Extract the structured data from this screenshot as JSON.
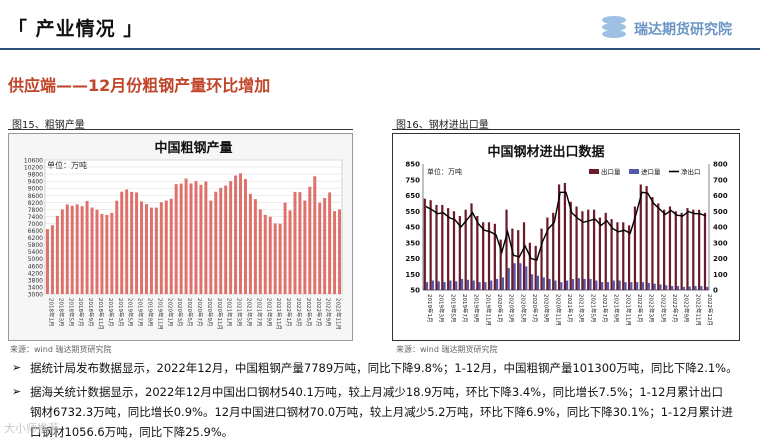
{
  "header": {
    "title": "「 产业情况 」",
    "logo_text": "瑞达期货研究院"
  },
  "section_title": "供应端——12月份粗钢产量环比增加",
  "figures": [
    {
      "caption": "图15、粗钢产量",
      "source": "来源：wind    瑞达期货研究院"
    },
    {
      "caption": "图16、钢材进出口量",
      "source": "来源：wind    瑞达期货研究院"
    }
  ],
  "bullets": [
    {
      "lines": [
        "据统计局发布数据显示，2022年12月，中国粗钢产量7789万吨，同比下降9.8%；1-12月，中国粗钢产量101300万吨，同比下降2.1%。"
      ]
    },
    {
      "lines": [
        "据海关统计数据显示，2022年12月中国出口钢材540.1万吨，较上月减少18.9万吨，环比下降3.4%，同比增长7.5%；1-12月累计出口",
        "钢材6732.3万吨，同比增长0.9%。12月中国进口钢材70.0万吨，较上月减少5.2万吨，环比下降6.9%，同比下降30.1%；1-12月累计进",
        "口钢材1056.6万吨，同比下降25.9%。"
      ]
    }
  ],
  "watermark": "大小师推荐",
  "colors": {
    "accent": "#c0452a",
    "rule": "#2e4f7a",
    "bar1": "#e0706a",
    "export": "#6b1a2a",
    "import": "#5558a8",
    "net": "#000000"
  },
  "chart_data": [
    {
      "type": "bar",
      "title": "中国粗钢产量",
      "unit_label": "单位：万吨",
      "yticks": [
        "3000",
        "3400",
        "3800",
        "4200",
        "4600",
        "5000",
        "5400",
        "5800",
        "6200",
        "6600",
        "7000",
        "7400",
        "7800",
        "8200",
        "8600",
        "9000",
        "9400",
        "9800",
        "10200",
        "10600"
      ],
      "ylim": [
        3000,
        10600
      ],
      "grid": true,
      "x_tick_labels": [
        "2018年1月",
        "2018年3月",
        "2018年5月",
        "2018年7月",
        "2018年9月",
        "2018年11月",
        "2019年1月",
        "2019年3月",
        "2019年5月",
        "2019年7月",
        "2019年9月",
        "2019年11月",
        "2020年1月",
        "2020年3月",
        "2020年5月",
        "2020年7月",
        "2020年9月",
        "2020年11月",
        "2021年1月",
        "2021年3月",
        "2021年5月",
        "2021年7月",
        "2021年9月",
        "2021年11月",
        "2022年1月",
        "2022年3月",
        "2022年5月",
        "2022年7月",
        "2022年9月",
        "2022年11月"
      ],
      "values": [
        6680,
        6900,
        7430,
        7800,
        8080,
        8000,
        8080,
        7980,
        8280,
        7900,
        7780,
        7540,
        7480,
        7600,
        8290,
        8800,
        8930,
        8790,
        8760,
        8250,
        8100,
        7900,
        7900,
        8200,
        8300,
        8400,
        9230,
        9260,
        9550,
        9270,
        9400,
        9190,
        9380,
        8300,
        8800,
        9020,
        9150,
        9400,
        9720,
        9840,
        9520,
        8680,
        8380,
        7800,
        7490,
        7380,
        7000,
        6980,
        8180,
        7740,
        8790,
        8780,
        8300,
        9080,
        9680,
        8180,
        8450,
        8760,
        7700,
        7789
      ]
    },
    {
      "type": "bar",
      "title": "中国钢材进出口数据",
      "unit_label": "单位：万吨",
      "legend": [
        "出口量",
        "进口量",
        "净出口"
      ],
      "legend_position": "top-right",
      "yticks_left": [
        "50",
        "150",
        "250",
        "350",
        "450",
        "550",
        "650",
        "750",
        "850"
      ],
      "yticks_right": [
        "0",
        "100",
        "200",
        "300",
        "400",
        "500",
        "600",
        "700",
        "800"
      ],
      "ylim_left": [
        50,
        850
      ],
      "ylim_right": [
        0,
        800
      ],
      "x_tick_labels": [
        "2019年1月",
        "2019年3月",
        "2019年5月",
        "2019年7月",
        "2019年9月",
        "2019年11月",
        "2020年1月",
        "2020年3月",
        "2020年5月",
        "2020年7月",
        "2020年9月",
        "2020年11月",
        "2021年1月",
        "2021年3月",
        "2021年5月",
        "2021年7月",
        "2021年9月",
        "2021年11月",
        "2022年1月",
        "2022年3月",
        "2022年5月",
        "2022年7月",
        "2022年9月",
        "2022年11月",
        "2022年12月"
      ],
      "series": [
        {
          "name": "出口量",
          "values": [
            630,
            620,
            590,
            590,
            570,
            550,
            520,
            560,
            600,
            520,
            480,
            480,
            470,
            370,
            560,
            440,
            430,
            480,
            350,
            330,
            440,
            510,
            540,
            720,
            730,
            610,
            580,
            550,
            560,
            560,
            510,
            540,
            500,
            480,
            480,
            460,
            580,
            720,
            710,
            640,
            600,
            560,
            580,
            550,
            540,
            570,
            560,
            559,
            540
          ]
        },
        {
          "name": "进口量",
          "values": [
            100,
            110,
            105,
            100,
            110,
            105,
            120,
            115,
            110,
            100,
            100,
            110,
            120,
            130,
            190,
            220,
            220,
            200,
            150,
            140,
            130,
            120,
            110,
            100,
            110,
            120,
            125,
            120,
            120,
            110,
            100,
            100,
            110,
            110,
            100,
            100,
            100,
            100,
            95,
            90,
            85,
            80,
            75,
            75,
            70,
            72,
            75,
            75,
            70
          ]
        },
        {
          "name": "净出口",
          "values": [
            530,
            510,
            485,
            490,
            460,
            445,
            400,
            445,
            490,
            420,
            380,
            370,
            350,
            240,
            370,
            220,
            210,
            280,
            200,
            190,
            310,
            390,
            430,
            620,
            620,
            490,
            455,
            430,
            440,
            450,
            410,
            440,
            390,
            370,
            380,
            360,
            480,
            620,
            615,
            550,
            515,
            480,
            505,
            475,
            470,
            498,
            485,
            484,
            470
          ]
        }
      ]
    }
  ]
}
